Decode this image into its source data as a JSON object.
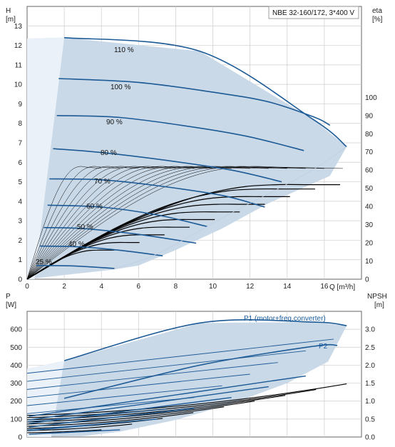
{
  "colors": {
    "curve": "#1c5a96",
    "fill": "#cad9e8",
    "fill_light": "#eaf1f8",
    "eta": "#000000",
    "grid": "#cccccc"
  },
  "chart_data": [
    {
      "type": "line",
      "title": "NBE 32-160/172, 3*400 V",
      "xlabel": "Q [m³/h]",
      "ylabel": "H [m]",
      "ylabel_top": "H",
      "ylabel_unit": "[m]",
      "y2label_top": "eta",
      "y2label_unit": "[%]",
      "xlim": [
        0,
        18
      ],
      "ylim": [
        0,
        14
      ],
      "y2lim": [
        0,
        110
      ],
      "x_ticks": [
        "0",
        "2",
        "4",
        "6",
        "8",
        "10",
        "12",
        "14",
        "16"
      ],
      "y_ticks": [
        "0",
        "1",
        "2",
        "3",
        "4",
        "5",
        "6",
        "7",
        "8",
        "9",
        "10",
        "11",
        "12",
        "13"
      ],
      "y2_ticks": [
        "0",
        "10",
        "20",
        "30",
        "40",
        "50",
        "60",
        "70",
        "80",
        "90",
        "100"
      ],
      "series": [
        {
          "name": "110 %",
          "x": [
            2,
            9.3,
            15.4,
            17.2
          ],
          "y": [
            12.4,
            11.7,
            8.2,
            6.8
          ]
        },
        {
          "name": "100 %",
          "x": [
            1.7,
            6,
            10,
            13,
            15.5,
            16.3
          ],
          "y": [
            10.3,
            10.1,
            9.6,
            9.1,
            8.3,
            7.9
          ]
        },
        {
          "name": "90 %",
          "x": [
            1.6,
            5,
            9,
            12,
            14.9
          ],
          "y": [
            8.4,
            8.3,
            7.8,
            7.3,
            6.6
          ]
        },
        {
          "name": "80 %",
          "x": [
            1.4,
            4,
            7.5,
            11,
            13.7
          ],
          "y": [
            6.7,
            6.5,
            6.1,
            5.6,
            5.0
          ]
        },
        {
          "name": "70 %",
          "x": [
            1.2,
            4,
            7,
            10.5,
            12.8
          ],
          "y": [
            5.15,
            5.1,
            4.8,
            4.3,
            3.7
          ]
        },
        {
          "name": "60 %",
          "x": [
            1.1,
            4,
            7,
            9.7
          ],
          "y": [
            3.8,
            3.7,
            3.3,
            2.7
          ]
        },
        {
          "name": "50 %",
          "x": [
            0.9,
            3,
            6,
            9.1
          ],
          "y": [
            2.65,
            2.6,
            2.3,
            1.85
          ]
        },
        {
          "name": "40 %",
          "x": [
            0.7,
            3,
            5.3,
            7.3
          ],
          "y": [
            1.7,
            1.65,
            1.45,
            1.2
          ]
        },
        {
          "name": "25 %",
          "x": [
            0.5,
            2.5,
            4.7
          ],
          "y": [
            0.7,
            0.68,
            0.55
          ]
        }
      ]
    },
    {
      "type": "line",
      "xlabel": "Q [m³/h]",
      "ylabel": "P [W]",
      "ylabel_top": "P",
      "ylabel_unit": "[W]",
      "y2label_top": "NPSH",
      "y2label_unit": "[m]",
      "xlim": [
        0,
        18
      ],
      "ylim": [
        0,
        700
      ],
      "y2lim": [
        0,
        3.5
      ],
      "y_ticks": [
        "0",
        "100",
        "200",
        "300",
        "400",
        "500",
        "600"
      ],
      "y2_ticks": [
        "0.0",
        "0.5",
        "1.0",
        "1.5",
        "2.0",
        "2.5",
        "3.0"
      ],
      "annotations": [
        "P1 (motor+freq.converter)",
        "P2"
      ],
      "series": [
        {
          "name": "P1 (motor+freq.converter)",
          "x": [
            2,
            9.3,
            15.4,
            17.2
          ],
          "y": [
            425,
            635,
            640,
            620
          ]
        },
        {
          "name": "P2",
          "x": [
            2,
            9.3,
            15.4,
            16.7
          ],
          "y": [
            215,
            400,
            505,
            510
          ]
        }
      ]
    }
  ],
  "labels": {
    "pct_110": "110 %",
    "pct_100": "100 %",
    "pct_90": "90 %",
    "pct_80": "80 %",
    "pct_70": "70 %",
    "pct_60": "60 %",
    "pct_50": "50 %",
    "pct_40": "40 %",
    "pct_25": "25 %"
  }
}
